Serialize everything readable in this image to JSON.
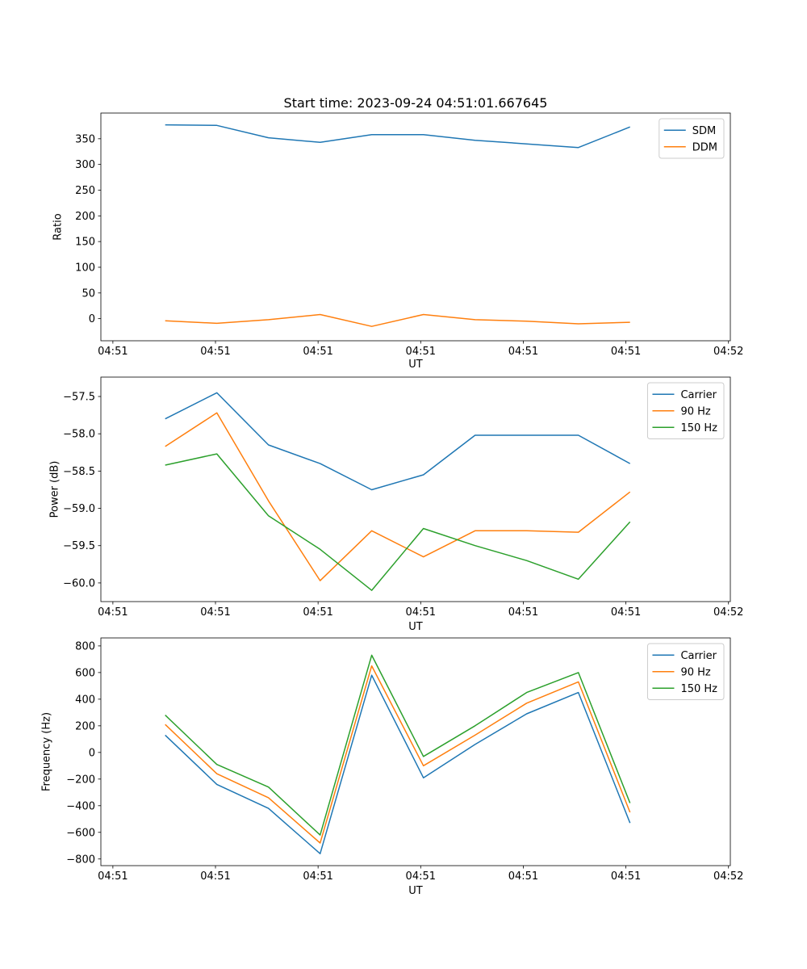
{
  "figure_title": "Start time: 2023-09-24 04:51:01.667645",
  "chart_data": [
    {
      "type": "line",
      "title": "Start time: 2023-09-24 04:51:01.667645",
      "xlabel": "UT",
      "ylabel": "Ratio",
      "xlim": [
        -0.117,
        6.018
      ],
      "ylim": [
        -43,
        400
      ],
      "grid": false,
      "x_ticks": [
        0,
        1,
        2,
        3,
        4,
        5,
        6
      ],
      "x_tick_labels": [
        "04:51",
        "04:51",
        "04:51",
        "04:51",
        "04:51",
        "04:51",
        "04:52"
      ],
      "y_ticks": [
        0,
        50,
        100,
        150,
        200,
        250,
        300,
        350
      ],
      "y_tick_labels": [
        "0",
        "50",
        "100",
        "150",
        "200",
        "250",
        "300",
        "350"
      ],
      "x": [
        0.51,
        1.013,
        1.517,
        2.02,
        2.523,
        3.027,
        3.53,
        4.033,
        4.537,
        5.04
      ],
      "series": [
        {
          "name": "SDM",
          "color": "#1f77b4",
          "values": [
            377,
            376,
            352,
            343,
            358,
            358,
            347,
            340,
            333,
            373
          ]
        },
        {
          "name": "DDM",
          "color": "#ff7f0e",
          "values": [
            -4,
            -9,
            -2,
            8,
            -15,
            8,
            -2,
            -5,
            -10,
            -7
          ]
        }
      ],
      "legend": {
        "location": "upper right",
        "labels": [
          "SDM",
          "DDM"
        ]
      }
    },
    {
      "type": "line",
      "title": "",
      "xlabel": "UT",
      "ylabel": "Power (dB)",
      "xlim": [
        -0.117,
        6.018
      ],
      "ylim": [
        -60.25,
        -57.24
      ],
      "grid": false,
      "x_ticks": [
        0,
        1,
        2,
        3,
        4,
        5,
        6
      ],
      "x_tick_labels": [
        "04:51",
        "04:51",
        "04:51",
        "04:51",
        "04:51",
        "04:51",
        "04:52"
      ],
      "y_ticks": [
        -57.5,
        -58.0,
        -58.5,
        -59.0,
        -59.5,
        -60.0
      ],
      "y_tick_labels": [
        "−57.5",
        "−58.0",
        "−58.5",
        "−59.0",
        "−59.5",
        "−60.0"
      ],
      "x": [
        0.51,
        1.013,
        1.517,
        2.02,
        2.523,
        3.027,
        3.53,
        4.033,
        4.537,
        5.04
      ],
      "series": [
        {
          "name": "Carrier",
          "color": "#1f77b4",
          "values": [
            -57.8,
            -57.45,
            -58.15,
            -58.4,
            -58.75,
            -58.55,
            -58.02,
            -58.02,
            -58.02,
            -58.4
          ]
        },
        {
          "name": "90 Hz",
          "color": "#ff7f0e",
          "values": [
            -58.17,
            -57.72,
            -58.9,
            -59.97,
            -59.3,
            -59.65,
            -59.3,
            -59.3,
            -59.32,
            -58.78
          ]
        },
        {
          "name": "150 Hz",
          "color": "#2ca02c",
          "values": [
            -58.42,
            -58.27,
            -59.1,
            -59.55,
            -60.1,
            -59.27,
            -59.5,
            -59.7,
            -59.95,
            -59.18
          ]
        }
      ],
      "legend": {
        "location": "upper right",
        "labels": [
          "Carrier",
          "90 Hz",
          "150 Hz"
        ]
      }
    },
    {
      "type": "line",
      "title": "",
      "xlabel": "UT",
      "ylabel": "Frequency (Hz)",
      "xlim": [
        -0.117,
        6.018
      ],
      "ylim": [
        -850,
        860
      ],
      "grid": false,
      "x_ticks": [
        0,
        1,
        2,
        3,
        4,
        5,
        6
      ],
      "x_tick_labels": [
        "04:51",
        "04:51",
        "04:51",
        "04:51",
        "04:51",
        "04:51",
        "04:52"
      ],
      "y_ticks": [
        800,
        600,
        400,
        200,
        0,
        -200,
        -400,
        -600,
        -800
      ],
      "y_tick_labels": [
        "800",
        "600",
        "400",
        "200",
        "0",
        "−200",
        "−400",
        "−600",
        "−800"
      ],
      "x": [
        0.51,
        1.013,
        1.517,
        2.02,
        2.523,
        3.027,
        3.53,
        4.033,
        4.537,
        5.04
      ],
      "series": [
        {
          "name": "Carrier",
          "color": "#1f77b4",
          "values": [
            130,
            -240,
            -420,
            -760,
            580,
            -190,
            60,
            290,
            450,
            -530
          ]
        },
        {
          "name": "90 Hz",
          "color": "#ff7f0e",
          "values": [
            210,
            -160,
            -340,
            -680,
            650,
            -100,
            130,
            370,
            530,
            -450
          ]
        },
        {
          "name": "150 Hz",
          "color": "#2ca02c",
          "values": [
            280,
            -90,
            -260,
            -620,
            730,
            -30,
            200,
            450,
            600,
            -380
          ]
        }
      ],
      "legend": {
        "location": "upper right",
        "labels": [
          "Carrier",
          "90 Hz",
          "150 Hz"
        ]
      }
    }
  ]
}
